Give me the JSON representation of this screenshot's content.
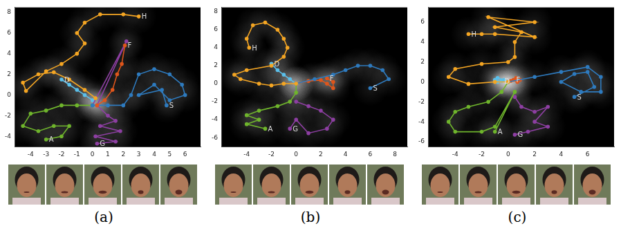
{
  "chart_data": [
    {
      "type": "line",
      "caption": "(a)",
      "grid": false,
      "marker": "circle",
      "xlim": [
        -5,
        7
      ],
      "xticks": [
        -4,
        -3,
        -2,
        -1,
        0,
        1,
        2,
        3,
        4,
        5,
        6
      ],
      "ylim": [
        -5,
        8.5
      ],
      "yticks": [
        -4,
        -2,
        0,
        2,
        4,
        6,
        8
      ],
      "series": [
        {
          "name": "H",
          "color": "#f5a623",
          "x": [
            0.2,
            -0.5,
            -1.5,
            -2.5,
            -3.5,
            -4.5,
            -4.3,
            -3.0,
            -2.0,
            -1.0,
            -0.5,
            -1.0,
            -0.5,
            0.5,
            2.0,
            3.0
          ],
          "values": [
            -0.3,
            0.5,
            1.5,
            2.2,
            2.0,
            1.2,
            0.4,
            2.3,
            3.0,
            4.0,
            5.0,
            6.0,
            7.0,
            7.8,
            7.8,
            7.6
          ]
        },
        {
          "name": "F",
          "color": "#e0561b",
          "x": [
            0.3,
            0.8,
            1.3,
            1.6,
            1.9,
            2.1
          ],
          "values": [
            -1.0,
            -0.5,
            0.5,
            2.0,
            3.0,
            4.8
          ]
        },
        {
          "name": "S",
          "color": "#2e7bbf",
          "x": [
            0.0,
            1.0,
            2.0,
            2.5,
            3.0,
            4.0,
            5.0,
            5.8,
            6.0,
            5.0,
            4.0,
            3.0,
            4.5,
            4.8
          ],
          "values": [
            -1.0,
            -1.0,
            -1.0,
            0.0,
            2.0,
            2.5,
            2.0,
            1.0,
            0.0,
            -0.5,
            1.0,
            0.0,
            0.5,
            -1.0
          ]
        },
        {
          "name": "A",
          "color": "#6fb52c",
          "x": [
            0.0,
            -1.0,
            -2.0,
            -3.0,
            -4.0,
            -4.5,
            -3.5,
            -2.5,
            -1.5,
            -2.0,
            -3.0
          ],
          "values": [
            -1.0,
            -1.0,
            -1.0,
            -1.5,
            -1.8,
            -3.0,
            -3.5,
            -3.0,
            -3.0,
            -4.0,
            -4.3
          ]
        },
        {
          "name": "G",
          "color": "#8e3fa3",
          "x": [
            0.0,
            2.2,
            0.3,
            1.0,
            1.5,
            0.5,
            1.8,
            0.2,
            1.5,
            0.3
          ],
          "values": [
            -1.0,
            5.2,
            -1.0,
            -2.0,
            -2.5,
            -3.0,
            -3.5,
            -4.0,
            -4.5,
            -4.7
          ]
        },
        {
          "name": "D",
          "color": "#5bc0eb",
          "x": [
            0.0,
            -0.5,
            -1.0,
            -1.5,
            -2.0
          ],
          "values": [
            -0.5,
            0.0,
            0.5,
            1.0,
            1.5
          ]
        }
      ]
    },
    {
      "type": "line",
      "caption": "(b)",
      "grid": false,
      "marker": "circle",
      "xlim": [
        -6,
        9
      ],
      "xticks": [
        -4,
        -2,
        0,
        2,
        4,
        6,
        8
      ],
      "ylim": [
        -7,
        8.5
      ],
      "yticks": [
        -6,
        -4,
        -2,
        0,
        2,
        4,
        6,
        8
      ],
      "series": [
        {
          "name": "H",
          "color": "#f5a623",
          "x": [
            0.0,
            -1.0,
            -2.0,
            -3.0,
            -4.5,
            -5.0,
            -4.0,
            -2.0,
            -1.0,
            -0.7,
            -1.0,
            -1.5,
            -2.5,
            -3.5,
            -4.0,
            -3.8
          ],
          "values": [
            0.0,
            0.0,
            -0.2,
            0.0,
            0.5,
            1.0,
            1.5,
            2.0,
            3.0,
            4.0,
            5.0,
            6.0,
            6.8,
            6.5,
            5.0,
            4.0
          ]
        },
        {
          "name": "S",
          "color": "#2e7bbf",
          "x": [
            0.0,
            1.5,
            3.0,
            4.0,
            5.0,
            6.0,
            7.0,
            7.5,
            6.0
          ],
          "values": [
            0.0,
            0.5,
            1.0,
            1.5,
            2.0,
            2.0,
            1.5,
            0.5,
            -0.5
          ]
        },
        {
          "name": "F",
          "color": "#e0561b",
          "x": [
            0.0,
            1.0,
            2.0,
            2.5,
            3.0,
            3.0,
            2.5
          ],
          "values": [
            0.0,
            0.3,
            0.4,
            0.0,
            -0.5,
            0.2,
            0.6
          ]
        },
        {
          "name": "D",
          "color": "#5bc0eb",
          "x": [
            0.0,
            -0.5,
            -1.0,
            -1.5,
            -2.0
          ],
          "values": [
            0.0,
            0.5,
            1.0,
            1.5,
            2.2
          ]
        },
        {
          "name": "A",
          "color": "#6fb52c",
          "x": [
            0.0,
            0.0,
            -0.5,
            -1.5,
            -3.0,
            -4.0,
            -3.0,
            -4.0,
            -2.5
          ],
          "values": [
            0.0,
            -1.0,
            -2.0,
            -2.5,
            -3.0,
            -3.5,
            -4.0,
            -4.5,
            -5.0
          ]
        },
        {
          "name": "G",
          "color": "#8e3fa3",
          "x": [
            0.0,
            1.0,
            2.0,
            3.0,
            2.5,
            1.0,
            0.0,
            -0.5
          ],
          "values": [
            -2.0,
            -2.5,
            -3.0,
            -4.0,
            -5.0,
            -5.5,
            -4.0,
            -5.0
          ]
        }
      ]
    },
    {
      "type": "line",
      "caption": "(c)",
      "grid": false,
      "marker": "circle",
      "xlim": [
        -6,
        8
      ],
      "xticks": [
        -4,
        -2,
        0,
        2,
        4,
        6
      ],
      "ylim": [
        -6.5,
        7.5
      ],
      "yticks": [
        -6,
        -4,
        -2,
        0,
        2,
        4,
        6
      ],
      "series": [
        {
          "name": "H",
          "color": "#f5a623",
          "x": [
            0.0,
            -1.0,
            -3.0,
            -4.5,
            -4.0,
            -2.0,
            0.0,
            0.5,
            0.5,
            1.0,
            -1.0,
            2.0,
            -1.5,
            2.0,
            -1.0,
            -2.0,
            -3.0
          ],
          "values": [
            0.0,
            0.0,
            -0.2,
            0.5,
            1.3,
            1.8,
            2.0,
            2.5,
            4.0,
            5.0,
            5.5,
            6.0,
            6.5,
            4.5,
            4.8,
            4.8,
            4.8
          ]
        },
        {
          "name": "S",
          "color": "#2e7bbf",
          "x": [
            0.0,
            2.0,
            4.0,
            6.0,
            7.0,
            7.0,
            5.5,
            4.0,
            5.0,
            6.0,
            6.5,
            5.0
          ],
          "values": [
            0.0,
            0.5,
            1.0,
            1.5,
            0.5,
            -1.0,
            -1.0,
            0.0,
            0.8,
            1.0,
            -0.5,
            -1.5
          ]
        },
        {
          "name": "D",
          "color": "#5bc0eb",
          "x": [
            -0.3,
            -0.8,
            -1.0,
            -0.8,
            -0.5
          ],
          "values": [
            0.2,
            0.4,
            0.2,
            0.0,
            0.1
          ]
        },
        {
          "name": "F",
          "color": "#e0561b",
          "x": [
            0.2,
            0.6,
            0.9,
            0.7,
            0.4
          ],
          "values": [
            0.1,
            0.4,
            0.2,
            0.0,
            0.2
          ]
        },
        {
          "name": "A",
          "color": "#6fb52c",
          "x": [
            0.0,
            -0.5,
            -1.5,
            -3.0,
            -4.0,
            -4.5,
            -4.0,
            -2.0,
            -1.0,
            0.5,
            -1.0
          ],
          "values": [
            0.0,
            -1.0,
            -2.0,
            -2.5,
            -3.0,
            -4.0,
            -5.0,
            -5.0,
            -4.5,
            -1.0,
            -5.0
          ]
        },
        {
          "name": "G",
          "color": "#8e3fa3",
          "x": [
            0.5,
            1.0,
            2.0,
            3.0,
            2.0,
            3.0,
            1.5,
            0.5
          ],
          "values": [
            -1.5,
            -2.5,
            -3.0,
            -2.5,
            -4.0,
            -4.5,
            -5.0,
            -5.3
          ]
        }
      ]
    }
  ]
}
